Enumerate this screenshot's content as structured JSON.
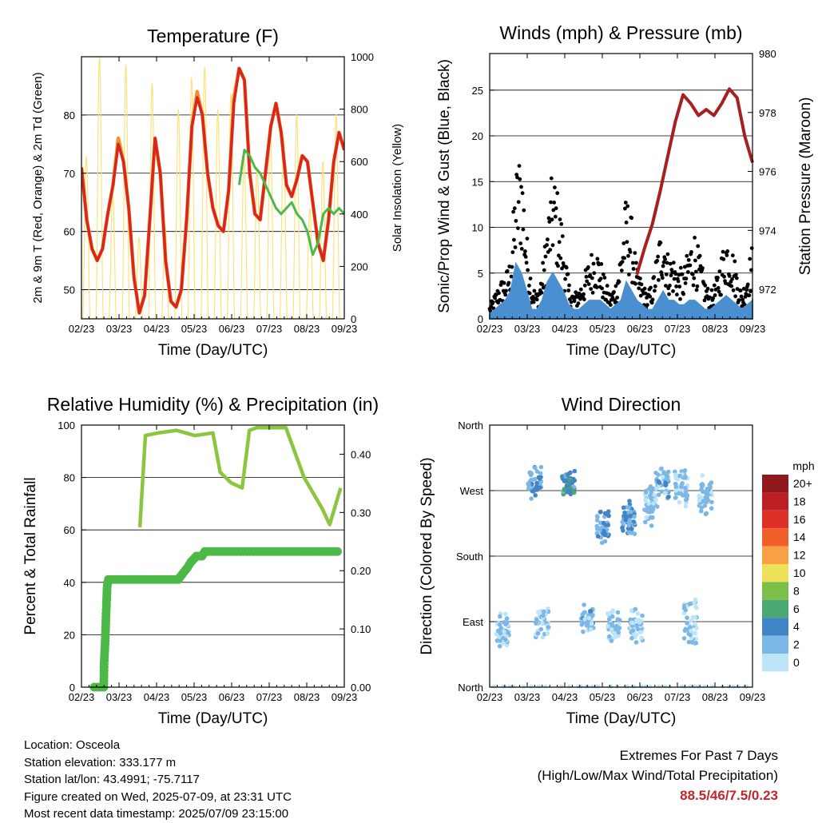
{
  "chart_data": [
    {
      "type": "line",
      "title": "Temperature (F)",
      "xlabel": "Time (Day/UTC)",
      "ylabel": "2m & 9m T (Red, Orange) & 2m Td (Green)",
      "y2label": "Solar Insolation (Yellow)",
      "x_ticks": [
        "02/23",
        "03/23",
        "04/23",
        "05/23",
        "06/23",
        "07/23",
        "08/23",
        "09/23"
      ],
      "y_ticks": [
        50,
        60,
        70,
        80
      ],
      "y2_ticks": [
        0,
        200,
        400,
        600,
        800,
        1000
      ],
      "ylim": [
        45,
        90
      ],
      "y2lim": [
        0,
        1000
      ],
      "grid": true,
      "series": [
        {
          "name": "2m T",
          "color": "#d7261f",
          "values": [
            71,
            62,
            57,
            55,
            57,
            63,
            68,
            75,
            72,
            64,
            52,
            46,
            49,
            62,
            76,
            70,
            55,
            48,
            47,
            50,
            62,
            78,
            83,
            80,
            70,
            64,
            61,
            60,
            67,
            82,
            88,
            86,
            70,
            63,
            62,
            70,
            78,
            82,
            77,
            68,
            66,
            69,
            73,
            72,
            65,
            58,
            55,
            62,
            72,
            77,
            74
          ]
        },
        {
          "name": "9m T",
          "color": "#f7902a",
          "values": [
            71,
            62,
            57,
            55,
            57,
            63,
            68,
            76,
            72,
            64,
            52,
            46,
            49,
            62,
            76,
            70,
            55,
            48,
            47,
            50,
            62,
            78,
            84,
            80,
            70,
            64,
            61,
            60,
            67,
            83,
            88,
            86,
            70,
            63,
            62,
            70,
            78,
            82,
            77,
            68,
            66,
            69,
            73,
            72,
            65,
            58,
            55,
            62,
            72,
            77,
            74
          ]
        },
        {
          "name": "2m Td",
          "color": "#4cb847",
          "start_index": 30,
          "values": [
            68,
            74,
            73,
            71,
            70,
            68,
            66,
            64,
            63,
            64,
            65,
            63,
            62,
            60,
            56,
            58,
            63,
            64,
            63,
            64,
            63
          ]
        },
        {
          "name": "Solar Insolation",
          "color": "#fde17a",
          "axis": "right",
          "day_peaks": [
            620,
            1000,
            470,
            970,
            310,
            900,
            350,
            800,
            920,
            960,
            800,
            860,
            620,
            580,
            740,
            700,
            780,
            420,
            600,
            780
          ]
        }
      ]
    },
    {
      "type": "scatter",
      "title": "Winds (mph) & Pressure (mb)",
      "xlabel": "Time (Day/UTC)",
      "ylabel": "Sonic/Prop Wind & Gust (Blue, Black)",
      "y2label": "Station Pressure (Maroon)",
      "x_ticks": [
        "02/23",
        "03/23",
        "04/23",
        "05/23",
        "06/23",
        "07/23",
        "08/23",
        "09/23"
      ],
      "y_ticks": [
        0,
        5,
        10,
        15,
        20,
        25
      ],
      "y2_ticks": [
        972,
        974,
        976,
        978,
        980
      ],
      "ylim": [
        0,
        29
      ],
      "y2lim": [
        971,
        980
      ],
      "grid": true,
      "series": [
        {
          "name": "Wind",
          "color": "#4a90d0",
          "values": [
            0.5,
            1,
            1.5,
            2,
            3,
            6,
            5,
            3,
            1,
            1,
            2,
            4,
            5,
            4,
            3,
            1.5,
            1,
            1,
            1.5,
            2,
            2,
            2,
            1.5,
            1,
            1.5,
            2,
            4,
            3,
            2,
            1.5,
            1,
            1,
            2,
            3,
            2,
            2,
            1.5,
            1.5,
            2,
            2,
            1.5,
            1,
            1,
            1.5,
            2,
            2.5,
            2,
            1.5,
            1,
            1.5,
            2
          ]
        },
        {
          "name": "Gust",
          "color": "#000000",
          "values": [
            1,
            2,
            3,
            3.5,
            5,
            12,
            14,
            7,
            3,
            2,
            4,
            8,
            12,
            10,
            7,
            3,
            2,
            2.5,
            3.5,
            5,
            6,
            5,
            3,
            2,
            3,
            6,
            10,
            8,
            4,
            3,
            2,
            3,
            6,
            8,
            5,
            5,
            4,
            4,
            6,
            7,
            5,
            3,
            2,
            3,
            5,
            7,
            6,
            4,
            2,
            4,
            6
          ]
        },
        {
          "name": "Station Pressure",
          "color": "#a6201f",
          "axis": "right",
          "start_index": 28,
          "values": [
            972.5,
            973.4,
            974.2,
            975.3,
            976.5,
            977.7,
            978.6,
            978.3,
            977.9,
            978.1,
            977.9,
            978.3,
            978.8,
            978.5,
            977.2,
            976.3
          ]
        }
      ]
    },
    {
      "type": "line",
      "title": "Relative Humidity (%) & Precipitation (in)",
      "xlabel": "Time (Day/UTC)",
      "ylabel": "Percent & Total Rainfall",
      "x_ticks": [
        "02/23",
        "03/23",
        "04/23",
        "05/23",
        "06/23",
        "07/23",
        "08/23",
        "09/23"
      ],
      "y_ticks": [
        0,
        20,
        40,
        60,
        80,
        100
      ],
      "y2_ticks": [
        "0.00",
        "0.10",
        "0.20",
        "0.30",
        "0.40"
      ],
      "ylim": [
        0,
        100
      ],
      "y2lim": [
        0,
        0.45
      ],
      "grid": true,
      "series": [
        {
          "name": "Relative Humidity",
          "color": "#8cc63f",
          "x_days": [
            0,
            0.15,
            0.5,
            1,
            1.5,
            2,
            2.2,
            2.5,
            2.8,
            3.0,
            3.2,
            4,
            4.5,
            5.0,
            5.2,
            5.5
          ],
          "values": [
            61,
            96,
            97,
            98,
            96,
            97,
            82,
            78,
            76,
            98,
            99,
            99,
            80,
            68,
            62,
            76
          ]
        },
        {
          "name": "Total Rainfall",
          "color": "#4cb847",
          "axis": "right",
          "x_days": [
            -1.25,
            -0.99,
            -0.98,
            -0.95,
            -0.93,
            -0.91,
            -0.9,
            -0.88,
            -0.86,
            1.05,
            1.3,
            1.4,
            1.55,
            1.7,
            1.78,
            5.5
          ],
          "values": [
            0.0,
            0.0,
            0.04,
            0.08,
            0.12,
            0.15,
            0.17,
            0.18,
            0.185,
            0.185,
            0.205,
            0.215,
            0.225,
            0.225,
            0.233,
            0.233
          ]
        }
      ]
    },
    {
      "type": "scatter",
      "title": "Wind Direction",
      "xlabel": "Time (Day/UTC)",
      "ylabel": "Direction (Colored By Speed)",
      "x_ticks": [
        "02/23",
        "03/23",
        "04/23",
        "05/23",
        "06/23",
        "07/23",
        "08/23",
        "09/23"
      ],
      "y_ticks": [
        "North",
        "East",
        "South",
        "West",
        "North"
      ],
      "ylim": [
        0,
        360
      ],
      "grid": true,
      "colorbar": {
        "unit": "mph",
        "labels": [
          "20+",
          "18",
          "16",
          "14",
          "12",
          "10",
          "8",
          "6",
          "4",
          "2",
          "0"
        ],
        "colors": [
          "#8e1a1d",
          "#bc1f24",
          "#de3027",
          "#f05f2a",
          "#f8a144",
          "#ede15a",
          "#7bbf4a",
          "#4aa873",
          "#4285c6",
          "#7cb7e6",
          "#bde4f7"
        ]
      },
      "clusters": [
        {
          "day": 0.35,
          "dir": 80,
          "spread": 30,
          "speed": 1
        },
        {
          "day": 1.2,
          "dir": 280,
          "spread": 25,
          "speed": 3
        },
        {
          "day": 1.4,
          "dir": 90,
          "spread": 25,
          "speed": 1
        },
        {
          "day": 2.1,
          "dir": 280,
          "spread": 20,
          "speed": 4
        },
        {
          "day": 2.6,
          "dir": 95,
          "spread": 20,
          "speed": 2
        },
        {
          "day": 3.0,
          "dir": 220,
          "spread": 30,
          "speed": 2.5
        },
        {
          "day": 3.3,
          "dir": 85,
          "spread": 25,
          "speed": 1.5
        },
        {
          "day": 3.7,
          "dir": 230,
          "spread": 30,
          "speed": 3
        },
        {
          "day": 3.9,
          "dir": 85,
          "spread": 25,
          "speed": 1
        },
        {
          "day": 4.3,
          "dir": 250,
          "spread": 30,
          "speed": 1.5
        },
        {
          "day": 4.6,
          "dir": 280,
          "spread": 25,
          "speed": 2
        },
        {
          "day": 5.1,
          "dir": 270,
          "spread": 35,
          "speed": 1.5
        },
        {
          "day": 5.35,
          "dir": 85,
          "spread": 40,
          "speed": 1
        },
        {
          "day": 5.75,
          "dir": 260,
          "spread": 35,
          "speed": 1.5
        }
      ]
    }
  ],
  "info": {
    "location": "Location: Osceola",
    "elevation": "Station elevation: 333.177 m",
    "latlon": "Station lat/lon: 43.4991; -75.7117",
    "created": "Figure created on Wed, 2025-07-09, at 23:31 UTC",
    "recent": "Most recent data timestamp: 2025/07/09 23:15:00"
  },
  "extremes": {
    "title": "Extremes For Past 7 Days",
    "subtitle": "(High/Low/Max Wind/Total Precipitation)",
    "values": "88.5/46/7.5/0.23"
  }
}
